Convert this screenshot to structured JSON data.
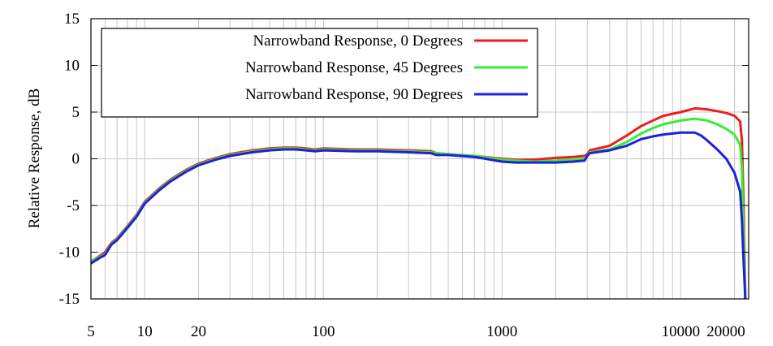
{
  "chart_data": {
    "type": "line",
    "title": "",
    "xlabel": "",
    "ylabel": "Relative Response, dB",
    "xscale": "log",
    "xlim": [
      5,
      24000
    ],
    "ylim": [
      -15,
      15
    ],
    "x_ticks": [
      5,
      10,
      20,
      100,
      1000,
      10000,
      20000
    ],
    "x_tick_labels": [
      "5",
      "10",
      "20",
      "100",
      "1000",
      "10000",
      "20000"
    ],
    "y_ticks": [
      -15,
      -10,
      -5,
      0,
      5,
      10,
      15
    ],
    "y_tick_labels": [
      "-15",
      "-10",
      "-5",
      "0",
      "5",
      "10",
      "15"
    ],
    "grid": true,
    "legend_position": "top-left",
    "series": [
      {
        "name": "Narrowband Response, 0 Degrees",
        "color": "#ee1c1c",
        "points": [
          [
            5,
            -11
          ],
          [
            5.5,
            -10.5
          ],
          [
            6,
            -10
          ],
          [
            6.5,
            -9
          ],
          [
            7,
            -8.5
          ],
          [
            8,
            -7.2
          ],
          [
            9,
            -6
          ],
          [
            10,
            -4.6
          ],
          [
            12,
            -3.2
          ],
          [
            14,
            -2.2
          ],
          [
            17,
            -1.2
          ],
          [
            20,
            -0.5
          ],
          [
            25,
            0.1
          ],
          [
            30,
            0.5
          ],
          [
            40,
            0.9
          ],
          [
            50,
            1.1
          ],
          [
            60,
            1.2
          ],
          [
            70,
            1.2
          ],
          [
            80,
            1.1
          ],
          [
            90,
            1.0
          ],
          [
            100,
            1.1
          ],
          [
            150,
            1.0
          ],
          [
            200,
            1.0
          ],
          [
            300,
            0.9
          ],
          [
            400,
            0.8
          ],
          [
            430,
            0.6
          ],
          [
            500,
            0.5
          ],
          [
            700,
            0.3
          ],
          [
            1000,
            0.0
          ],
          [
            1200,
            -0.1
          ],
          [
            1500,
            -0.1
          ],
          [
            2000,
            0.1
          ],
          [
            2500,
            0.2
          ],
          [
            2900,
            0.3
          ],
          [
            3000,
            0.5
          ],
          [
            3100,
            0.9
          ],
          [
            4000,
            1.4
          ],
          [
            5000,
            2.5
          ],
          [
            6000,
            3.5
          ],
          [
            7000,
            4.1
          ],
          [
            8000,
            4.6
          ],
          [
            10000,
            5.0
          ],
          [
            12000,
            5.4
          ],
          [
            14000,
            5.3
          ],
          [
            16000,
            5.1
          ],
          [
            18000,
            4.9
          ],
          [
            20000,
            4.6
          ],
          [
            21500,
            4.0
          ],
          [
            22000,
            2.0
          ],
          [
            22500,
            -5
          ],
          [
            23000,
            -15
          ]
        ]
      },
      {
        "name": "Narrowband Response, 45 Degrees",
        "color": "#33ee33",
        "points": [
          [
            5,
            -11
          ],
          [
            5.5,
            -10.6
          ],
          [
            6,
            -10.2
          ],
          [
            6.5,
            -9.1
          ],
          [
            7,
            -8.6
          ],
          [
            8,
            -7.3
          ],
          [
            9,
            -6.1
          ],
          [
            10,
            -4.7
          ],
          [
            12,
            -3.3
          ],
          [
            14,
            -2.3
          ],
          [
            17,
            -1.3
          ],
          [
            20,
            -0.6
          ],
          [
            25,
            0.0
          ],
          [
            30,
            0.4
          ],
          [
            40,
            0.8
          ],
          [
            50,
            1.0
          ],
          [
            60,
            1.1
          ],
          [
            70,
            1.1
          ],
          [
            80,
            1.0
          ],
          [
            90,
            0.9
          ],
          [
            100,
            1.0
          ],
          [
            150,
            0.9
          ],
          [
            200,
            0.9
          ],
          [
            300,
            0.8
          ],
          [
            400,
            0.7
          ],
          [
            430,
            0.6
          ],
          [
            500,
            0.5
          ],
          [
            700,
            0.3
          ],
          [
            1000,
            -0.1
          ],
          [
            1200,
            -0.2
          ],
          [
            1500,
            -0.3
          ],
          [
            2000,
            -0.2
          ],
          [
            2500,
            -0.1
          ],
          [
            2900,
            0.0
          ],
          [
            3000,
            0.3
          ],
          [
            3100,
            0.7
          ],
          [
            4000,
            1.0
          ],
          [
            5000,
            1.8
          ],
          [
            6000,
            2.7
          ],
          [
            7000,
            3.3
          ],
          [
            8000,
            3.7
          ],
          [
            10000,
            4.1
          ],
          [
            12000,
            4.3
          ],
          [
            14000,
            4.1
          ],
          [
            16000,
            3.7
          ],
          [
            18000,
            3.2
          ],
          [
            20000,
            2.6
          ],
          [
            21500,
            1.5
          ],
          [
            22000,
            -1
          ],
          [
            22500,
            -8
          ],
          [
            23000,
            -15
          ]
        ]
      },
      {
        "name": "Narrowband Response, 90 Degrees",
        "color": "#1f1fdd",
        "points": [
          [
            5,
            -11.2
          ],
          [
            5.5,
            -10.7
          ],
          [
            6,
            -10.3
          ],
          [
            6.5,
            -9.2
          ],
          [
            7,
            -8.7
          ],
          [
            8,
            -7.4
          ],
          [
            9,
            -6.2
          ],
          [
            10,
            -4.8
          ],
          [
            12,
            -3.4
          ],
          [
            14,
            -2.4
          ],
          [
            17,
            -1.4
          ],
          [
            20,
            -0.7
          ],
          [
            25,
            -0.1
          ],
          [
            30,
            0.3
          ],
          [
            40,
            0.7
          ],
          [
            50,
            0.9
          ],
          [
            60,
            1.0
          ],
          [
            70,
            1.0
          ],
          [
            80,
            0.9
          ],
          [
            90,
            0.8
          ],
          [
            100,
            0.9
          ],
          [
            150,
            0.8
          ],
          [
            200,
            0.8
          ],
          [
            300,
            0.7
          ],
          [
            400,
            0.6
          ],
          [
            430,
            0.4
          ],
          [
            500,
            0.4
          ],
          [
            700,
            0.2
          ],
          [
            1000,
            -0.3
          ],
          [
            1200,
            -0.4
          ],
          [
            1500,
            -0.4
          ],
          [
            2000,
            -0.4
          ],
          [
            2500,
            -0.3
          ],
          [
            2900,
            -0.2
          ],
          [
            3000,
            0.3
          ],
          [
            3100,
            0.6
          ],
          [
            4000,
            0.9
          ],
          [
            5000,
            1.4
          ],
          [
            6000,
            2.1
          ],
          [
            7000,
            2.4
          ],
          [
            8000,
            2.6
          ],
          [
            10000,
            2.8
          ],
          [
            12000,
            2.8
          ],
          [
            13000,
            2.5
          ],
          [
            14000,
            2.0
          ],
          [
            16000,
            1.0
          ],
          [
            18000,
            0.0
          ],
          [
            20000,
            -1.5
          ],
          [
            21500,
            -3.5
          ],
          [
            22000,
            -6.5
          ],
          [
            22500,
            -11
          ],
          [
            23000,
            -15
          ]
        ]
      }
    ]
  }
}
